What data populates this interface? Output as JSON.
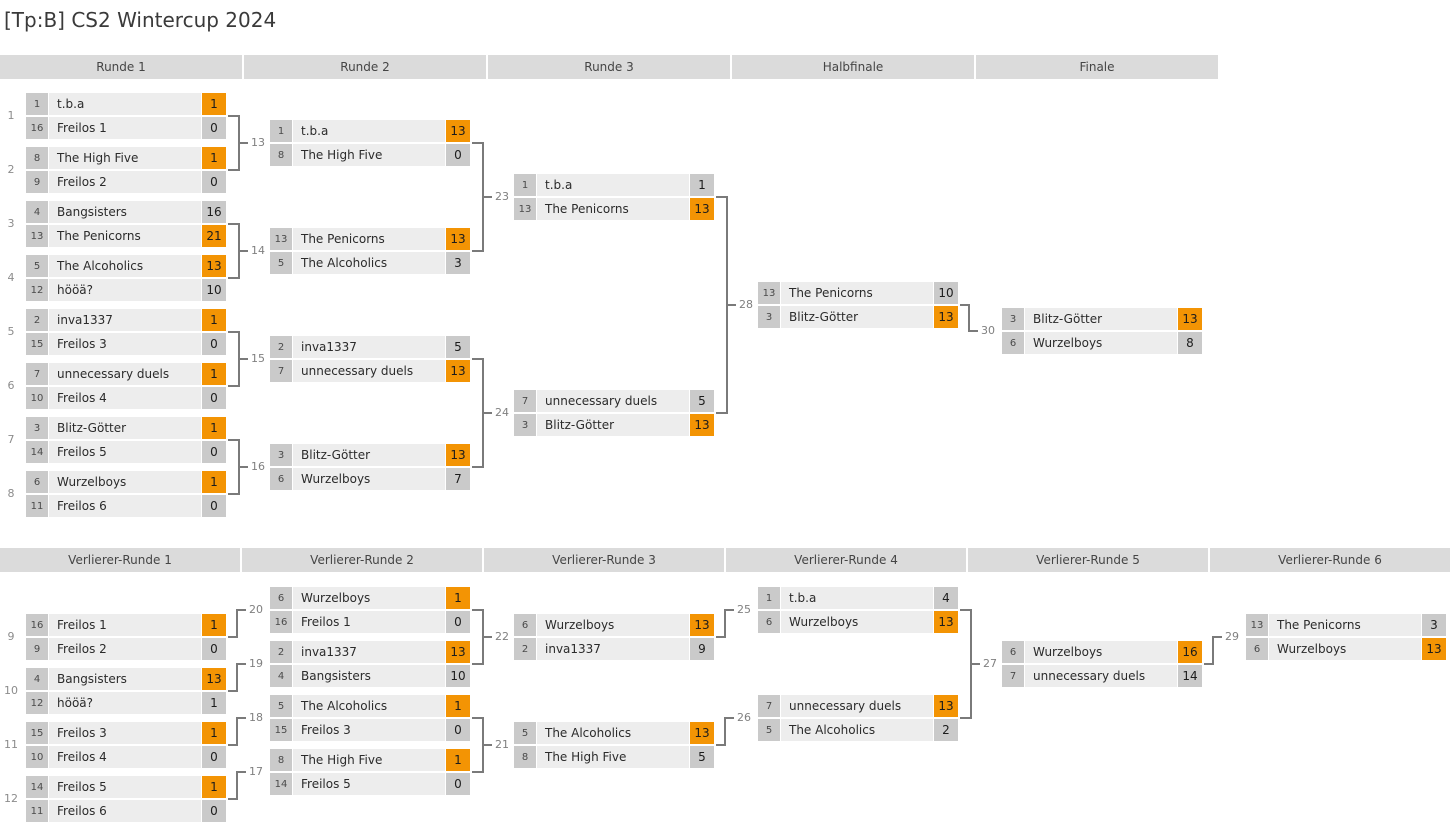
{
  "title": "[Tp:B] CS2 Wintercup 2024",
  "colors": {
    "winner_accent": "#f39404",
    "box_gray": "#cacaca",
    "row_gray": "#ededed",
    "header_gray": "#dbdbdb",
    "connector_gray": "#7a7a7a"
  },
  "upper_bracket": {
    "rounds": [
      "Runde 1",
      "Runde 2",
      "Runde 3",
      "Halbfinale",
      "Finale"
    ],
    "matches": [
      {
        "id": "1",
        "col": 0,
        "slot": 0,
        "teams": [
          {
            "seed": "1",
            "name": "t.b.a",
            "score": "1",
            "winner": true
          },
          {
            "seed": "16",
            "name": "Freilos 1",
            "score": "0",
            "winner": false
          }
        ]
      },
      {
        "id": "2",
        "col": 0,
        "slot": 1,
        "teams": [
          {
            "seed": "8",
            "name": "The High Five",
            "score": "1",
            "winner": true
          },
          {
            "seed": "9",
            "name": "Freilos 2",
            "score": "0",
            "winner": false
          }
        ]
      },
      {
        "id": "3",
        "col": 0,
        "slot": 2,
        "teams": [
          {
            "seed": "4",
            "name": "Bangsisters",
            "score": "16",
            "winner": false
          },
          {
            "seed": "13",
            "name": "The Penicorns",
            "score": "21",
            "winner": true
          }
        ]
      },
      {
        "id": "4",
        "col": 0,
        "slot": 3,
        "teams": [
          {
            "seed": "5",
            "name": "The Alcoholics",
            "score": "13",
            "winner": true
          },
          {
            "seed": "12",
            "name": "hööä?",
            "score": "10",
            "winner": false
          }
        ]
      },
      {
        "id": "5",
        "col": 0,
        "slot": 4,
        "teams": [
          {
            "seed": "2",
            "name": "inva1337",
            "score": "1",
            "winner": true
          },
          {
            "seed": "15",
            "name": "Freilos 3",
            "score": "0",
            "winner": false
          }
        ]
      },
      {
        "id": "6",
        "col": 0,
        "slot": 5,
        "teams": [
          {
            "seed": "7",
            "name": "unnecessary duels",
            "score": "1",
            "winner": true
          },
          {
            "seed": "10",
            "name": "Freilos 4",
            "score": "0",
            "winner": false
          }
        ]
      },
      {
        "id": "7",
        "col": 0,
        "slot": 6,
        "teams": [
          {
            "seed": "3",
            "name": "Blitz-Götter",
            "score": "1",
            "winner": true
          },
          {
            "seed": "14",
            "name": "Freilos 5",
            "score": "0",
            "winner": false
          }
        ]
      },
      {
        "id": "8",
        "col": 0,
        "slot": 7,
        "teams": [
          {
            "seed": "6",
            "name": "Wurzelboys",
            "score": "1",
            "winner": true
          },
          {
            "seed": "11",
            "name": "Freilos 6",
            "score": "0",
            "winner": false
          }
        ]
      },
      {
        "id": "13",
        "col": 1,
        "slot": 0,
        "teams": [
          {
            "seed": "1",
            "name": "t.b.a",
            "score": "13",
            "winner": true
          },
          {
            "seed": "8",
            "name": "The High Five",
            "score": "0",
            "winner": false
          }
        ]
      },
      {
        "id": "14",
        "col": 1,
        "slot": 1,
        "teams": [
          {
            "seed": "13",
            "name": "The Penicorns",
            "score": "13",
            "winner": true
          },
          {
            "seed": "5",
            "name": "The Alcoholics",
            "score": "3",
            "winner": false
          }
        ]
      },
      {
        "id": "15",
        "col": 1,
        "slot": 2,
        "teams": [
          {
            "seed": "2",
            "name": "inva1337",
            "score": "5",
            "winner": false
          },
          {
            "seed": "7",
            "name": "unnecessary duels",
            "score": "13",
            "winner": true
          }
        ]
      },
      {
        "id": "16",
        "col": 1,
        "slot": 3,
        "teams": [
          {
            "seed": "3",
            "name": "Blitz-Götter",
            "score": "13",
            "winner": true
          },
          {
            "seed": "6",
            "name": "Wurzelboys",
            "score": "7",
            "winner": false
          }
        ]
      },
      {
        "id": "23",
        "col": 2,
        "slot": 0,
        "teams": [
          {
            "seed": "1",
            "name": "t.b.a",
            "score": "1",
            "winner": false
          },
          {
            "seed": "13",
            "name": "The Penicorns",
            "score": "13",
            "winner": true
          }
        ]
      },
      {
        "id": "24",
        "col": 2,
        "slot": 1,
        "teams": [
          {
            "seed": "7",
            "name": "unnecessary duels",
            "score": "5",
            "winner": false
          },
          {
            "seed": "3",
            "name": "Blitz-Götter",
            "score": "13",
            "winner": true
          }
        ]
      },
      {
        "id": "28",
        "col": 3,
        "slot": 0,
        "teams": [
          {
            "seed": "13",
            "name": "The Penicorns",
            "score": "10",
            "winner": false
          },
          {
            "seed": "3",
            "name": "Blitz-Götter",
            "score": "13",
            "winner": true
          }
        ]
      },
      {
        "id": "30",
        "col": 4,
        "slot": 0,
        "teams": [
          {
            "seed": "3",
            "name": "Blitz-Götter",
            "score": "13",
            "winner": true
          },
          {
            "seed": "6",
            "name": "Wurzelboys",
            "score": "8",
            "winner": false
          }
        ]
      }
    ],
    "flows": [
      {
        "from": [
          "1",
          "2"
        ],
        "to": "13"
      },
      {
        "from": [
          "3",
          "4"
        ],
        "to": "14"
      },
      {
        "from": [
          "5",
          "6"
        ],
        "to": "15"
      },
      {
        "from": [
          "7",
          "8"
        ],
        "to": "16"
      },
      {
        "from": [
          "13",
          "14"
        ],
        "to": "23"
      },
      {
        "from": [
          "15",
          "16"
        ],
        "to": "24"
      },
      {
        "from": [
          "23",
          "24"
        ],
        "to": "28"
      },
      {
        "from": [
          "28"
        ],
        "to": "30"
      }
    ]
  },
  "lower_bracket": {
    "rounds": [
      "Verlierer-Runde 1",
      "Verlierer-Runde 2",
      "Verlierer-Runde 3",
      "Verlierer-Runde 4",
      "Verlierer-Runde 5",
      "Verlierer-Runde 6"
    ],
    "matches": [
      {
        "id": "9",
        "col": 0,
        "slot": 0,
        "teams": [
          {
            "seed": "16",
            "name": "Freilos 1",
            "score": "1",
            "winner": true
          },
          {
            "seed": "9",
            "name": "Freilos 2",
            "score": "0",
            "winner": false
          }
        ]
      },
      {
        "id": "10",
        "col": 0,
        "slot": 1,
        "teams": [
          {
            "seed": "4",
            "name": "Bangsisters",
            "score": "13",
            "winner": true
          },
          {
            "seed": "12",
            "name": "hööä?",
            "score": "1",
            "winner": false
          }
        ]
      },
      {
        "id": "11",
        "col": 0,
        "slot": 2,
        "teams": [
          {
            "seed": "15",
            "name": "Freilos 3",
            "score": "1",
            "winner": true
          },
          {
            "seed": "10",
            "name": "Freilos 4",
            "score": "0",
            "winner": false
          }
        ]
      },
      {
        "id": "12",
        "col": 0,
        "slot": 3,
        "teams": [
          {
            "seed": "14",
            "name": "Freilos 5",
            "score": "1",
            "winner": true
          },
          {
            "seed": "11",
            "name": "Freilos 6",
            "score": "0",
            "winner": false
          }
        ]
      },
      {
        "id": "20",
        "col": 1,
        "slot": 0,
        "teams": [
          {
            "seed": "6",
            "name": "Wurzelboys",
            "score": "1",
            "winner": true
          },
          {
            "seed": "16",
            "name": "Freilos 1",
            "score": "0",
            "winner": false
          }
        ]
      },
      {
        "id": "19",
        "col": 1,
        "slot": 1,
        "teams": [
          {
            "seed": "2",
            "name": "inva1337",
            "score": "13",
            "winner": true
          },
          {
            "seed": "4",
            "name": "Bangsisters",
            "score": "10",
            "winner": false
          }
        ]
      },
      {
        "id": "18",
        "col": 1,
        "slot": 2,
        "teams": [
          {
            "seed": "5",
            "name": "The Alcoholics",
            "score": "1",
            "winner": true
          },
          {
            "seed": "15",
            "name": "Freilos 3",
            "score": "0",
            "winner": false
          }
        ]
      },
      {
        "id": "17",
        "col": 1,
        "slot": 3,
        "teams": [
          {
            "seed": "8",
            "name": "The High Five",
            "score": "1",
            "winner": true
          },
          {
            "seed": "14",
            "name": "Freilos 5",
            "score": "0",
            "winner": false
          }
        ]
      },
      {
        "id": "22",
        "col": 2,
        "slot": 0,
        "teams": [
          {
            "seed": "6",
            "name": "Wurzelboys",
            "score": "13",
            "winner": true
          },
          {
            "seed": "2",
            "name": "inva1337",
            "score": "9",
            "winner": false
          }
        ]
      },
      {
        "id": "21",
        "col": 2,
        "slot": 1,
        "teams": [
          {
            "seed": "5",
            "name": "The Alcoholics",
            "score": "13",
            "winner": true
          },
          {
            "seed": "8",
            "name": "The High Five",
            "score": "5",
            "winner": false
          }
        ]
      },
      {
        "id": "25",
        "col": 3,
        "slot": 0,
        "teams": [
          {
            "seed": "1",
            "name": "t.b.a",
            "score": "4",
            "winner": false
          },
          {
            "seed": "6",
            "name": "Wurzelboys",
            "score": "13",
            "winner": true
          }
        ]
      },
      {
        "id": "26",
        "col": 3,
        "slot": 1,
        "teams": [
          {
            "seed": "7",
            "name": "unnecessary duels",
            "score": "13",
            "winner": true
          },
          {
            "seed": "5",
            "name": "The Alcoholics",
            "score": "2",
            "winner": false
          }
        ]
      },
      {
        "id": "27",
        "col": 4,
        "slot": 0,
        "teams": [
          {
            "seed": "6",
            "name": "Wurzelboys",
            "score": "16",
            "winner": true
          },
          {
            "seed": "7",
            "name": "unnecessary duels",
            "score": "14",
            "winner": false
          }
        ]
      },
      {
        "id": "29",
        "col": 5,
        "slot": 0,
        "teams": [
          {
            "seed": "13",
            "name": "The Penicorns",
            "score": "3",
            "winner": false
          },
          {
            "seed": "6",
            "name": "Wurzelboys",
            "score": "13",
            "winner": true
          }
        ]
      }
    ],
    "flows": [
      {
        "from": [
          "9"
        ],
        "to": "20"
      },
      {
        "from": [
          "10"
        ],
        "to": "19"
      },
      {
        "from": [
          "11"
        ],
        "to": "18"
      },
      {
        "from": [
          "12"
        ],
        "to": "17"
      },
      {
        "from": [
          "20",
          "19"
        ],
        "to": "22"
      },
      {
        "from": [
          "18",
          "17"
        ],
        "to": "21"
      },
      {
        "from": [
          "22"
        ],
        "to": "25"
      },
      {
        "from": [
          "21"
        ],
        "to": "26"
      },
      {
        "from": [
          "25",
          "26"
        ],
        "to": "27"
      },
      {
        "from": [
          "27"
        ],
        "to": "29"
      }
    ]
  }
}
